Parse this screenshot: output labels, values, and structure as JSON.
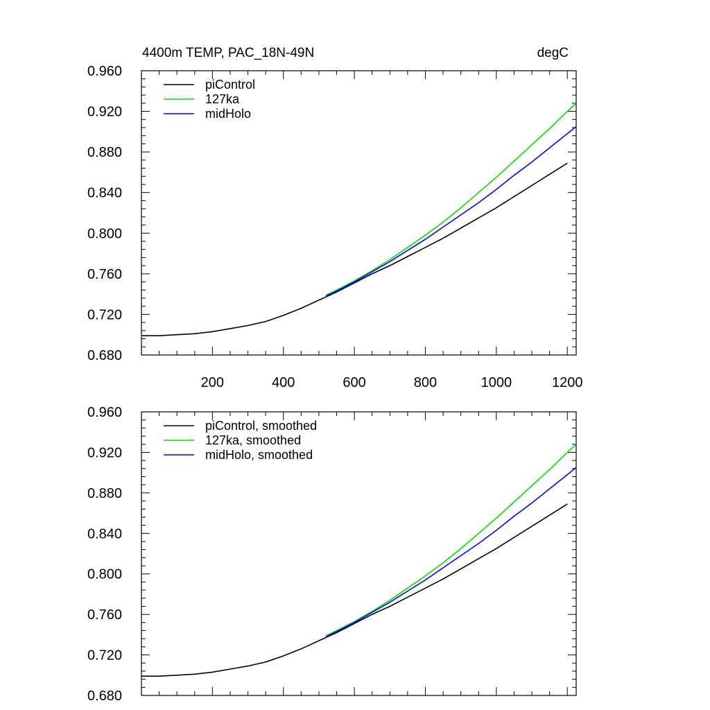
{
  "figure": {
    "title_left": "4400m TEMP, PAC_18N-49N",
    "title_right": "degC"
  },
  "chart_data": [
    {
      "type": "line",
      "panel": "top",
      "xlim": [
        0,
        1225
      ],
      "ylim": [
        0.68,
        0.96
      ],
      "x_major_ticks": [
        200,
        400,
        600,
        800,
        1000,
        1200
      ],
      "x_tick_labels": [
        "200",
        "400",
        "600",
        "800",
        "1000",
        "1200"
      ],
      "y_tick_labels": [
        "0.680",
        "0.720",
        "0.760",
        "0.800",
        "0.840",
        "0.880",
        "0.920",
        "0.960"
      ],
      "y_major_ticks": [
        0.68,
        0.72,
        0.76,
        0.8,
        0.84,
        0.88,
        0.92,
        0.96
      ],
      "legend_position": "top-left",
      "series": [
        {
          "name": "piControl",
          "color": "#000000",
          "x": [
            0,
            50,
            100,
            150,
            200,
            250,
            300,
            350,
            400,
            450,
            500,
            550,
            600,
            650,
            700,
            750,
            800,
            850,
            900,
            950,
            1000,
            1050,
            1100,
            1150,
            1200
          ],
          "y": [
            0.699,
            0.699,
            0.7,
            0.701,
            0.703,
            0.706,
            0.709,
            0.713,
            0.719,
            0.726,
            0.734,
            0.742,
            0.751,
            0.76,
            0.768,
            0.777,
            0.786,
            0.795,
            0.805,
            0.815,
            0.825,
            0.836,
            0.847,
            0.858,
            0.869
          ]
        },
        {
          "name": "127ka",
          "color": "#00e000",
          "x": [
            520,
            550,
            600,
            650,
            700,
            750,
            800,
            850,
            900,
            950,
            1000,
            1050,
            1100,
            1150,
            1200,
            1225
          ],
          "y": [
            0.739,
            0.744,
            0.753,
            0.763,
            0.774,
            0.786,
            0.798,
            0.811,
            0.825,
            0.84,
            0.855,
            0.871,
            0.887,
            0.903,
            0.92,
            0.928
          ]
        },
        {
          "name": "midHolo",
          "color": "#0000ff",
          "x": [
            520,
            550,
            600,
            650,
            700,
            750,
            800,
            850,
            900,
            950,
            1000,
            1050,
            1100,
            1150,
            1200,
            1225
          ],
          "y": [
            0.738,
            0.743,
            0.752,
            0.762,
            0.772,
            0.783,
            0.794,
            0.806,
            0.818,
            0.83,
            0.843,
            0.857,
            0.87,
            0.884,
            0.898,
            0.905
          ]
        }
      ]
    },
    {
      "type": "line",
      "panel": "bottom",
      "xlim": [
        0,
        1225
      ],
      "ylim": [
        0.68,
        0.96
      ],
      "x_major_ticks": [
        200,
        400,
        600,
        800,
        1000,
        1200
      ],
      "x_tick_labels": [],
      "y_tick_labels": [
        "0.680",
        "0.720",
        "0.760",
        "0.800",
        "0.840",
        "0.880",
        "0.920",
        "0.960"
      ],
      "y_major_ticks": [
        0.68,
        0.72,
        0.76,
        0.8,
        0.84,
        0.88,
        0.92,
        0.96
      ],
      "legend_position": "top-left",
      "series": [
        {
          "name": "piControl, smoothed",
          "color": "#000000",
          "x": [
            0,
            50,
            100,
            150,
            200,
            250,
            300,
            350,
            400,
            450,
            500,
            550,
            600,
            650,
            700,
            750,
            800,
            850,
            900,
            950,
            1000,
            1050,
            1100,
            1150,
            1200
          ],
          "y": [
            0.699,
            0.699,
            0.7,
            0.701,
            0.703,
            0.706,
            0.709,
            0.713,
            0.719,
            0.726,
            0.734,
            0.742,
            0.751,
            0.76,
            0.768,
            0.777,
            0.786,
            0.795,
            0.805,
            0.815,
            0.825,
            0.836,
            0.847,
            0.858,
            0.869
          ]
        },
        {
          "name": "127ka, smoothed",
          "color": "#00e000",
          "x": [
            520,
            550,
            600,
            650,
            700,
            750,
            800,
            850,
            900,
            950,
            1000,
            1050,
            1100,
            1150,
            1200,
            1225
          ],
          "y": [
            0.739,
            0.744,
            0.753,
            0.763,
            0.774,
            0.786,
            0.798,
            0.811,
            0.825,
            0.84,
            0.855,
            0.871,
            0.887,
            0.903,
            0.92,
            0.928
          ]
        },
        {
          "name": "midHolo, smoothed",
          "color": "#0000ff",
          "x": [
            520,
            550,
            600,
            650,
            700,
            750,
            800,
            850,
            900,
            950,
            1000,
            1050,
            1100,
            1150,
            1200,
            1225
          ],
          "y": [
            0.738,
            0.743,
            0.752,
            0.762,
            0.772,
            0.783,
            0.794,
            0.806,
            0.818,
            0.83,
            0.843,
            0.857,
            0.87,
            0.884,
            0.898,
            0.905
          ]
        }
      ]
    }
  ]
}
